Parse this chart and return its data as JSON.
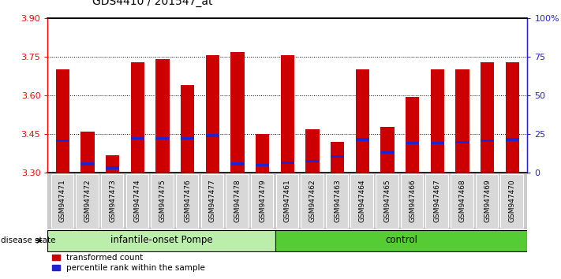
{
  "title": "GDS4410 / 201547_at",
  "samples": [
    "GSM947471",
    "GSM947472",
    "GSM947473",
    "GSM947474",
    "GSM947475",
    "GSM947476",
    "GSM947477",
    "GSM947478",
    "GSM947479",
    "GSM947461",
    "GSM947462",
    "GSM947463",
    "GSM947464",
    "GSM947465",
    "GSM947466",
    "GSM947467",
    "GSM947468",
    "GSM947469",
    "GSM947470"
  ],
  "red_values": [
    3.7,
    3.46,
    3.37,
    3.73,
    3.74,
    3.64,
    3.755,
    3.77,
    3.45,
    3.755,
    3.47,
    3.42,
    3.7,
    3.48,
    3.595,
    3.7,
    3.7,
    3.73,
    3.73
  ],
  "blue_values": [
    3.425,
    3.335,
    3.32,
    3.435,
    3.435,
    3.435,
    3.445,
    3.335,
    3.33,
    3.34,
    3.345,
    3.365,
    3.43,
    3.38,
    3.415,
    3.415,
    3.42,
    3.425,
    3.43
  ],
  "group1_count": 9,
  "group2_count": 10,
  "group1_label": "infantile-onset Pompe",
  "group2_label": "control",
  "disease_state_label": "disease state",
  "legend_red": "transformed count",
  "legend_blue": "percentile rank within the sample",
  "ymin": 3.3,
  "ymax": 3.9,
  "yticks": [
    3.3,
    3.45,
    3.6,
    3.75,
    3.9
  ],
  "right_yticks": [
    0,
    25,
    50,
    75,
    100
  ],
  "right_yticklabels": [
    "0",
    "25",
    "50",
    "75",
    "100%"
  ],
  "bar_color": "#cc0000",
  "blue_color": "#2222cc",
  "group1_bg": "#bbeeaa",
  "group2_bg": "#55cc33",
  "tick_bg": "#cccccc",
  "bar_width": 0.55
}
